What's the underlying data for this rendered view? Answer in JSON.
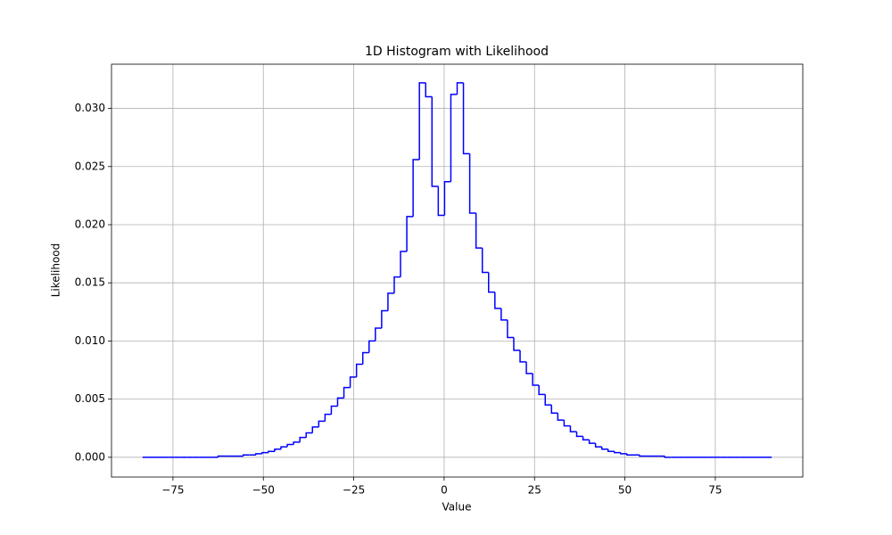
{
  "chart_data": {
    "type": "histogram",
    "title": "1D Histogram with Likelihood",
    "x_label": "Value",
    "y_label": "Likelihood",
    "color": "#0000ff",
    "grid": true,
    "bins": [
      -83.4,
      -81.66,
      -79.92,
      -78.18,
      -76.44,
      -74.7,
      -72.96,
      -71.22,
      -69.48,
      -67.74,
      -66.0,
      -64.26,
      -62.52,
      -60.78,
      -59.04,
      -57.3,
      -55.56,
      -53.82,
      -52.08,
      -50.34,
      -48.6,
      -46.86,
      -45.12,
      -43.38,
      -41.64,
      -39.9,
      -38.16,
      -36.42,
      -34.68,
      -32.94,
      -31.2,
      -29.46,
      -27.72,
      -25.98,
      -24.24,
      -22.5,
      -20.76,
      -19.02,
      -17.28,
      -15.54,
      -13.8,
      -12.06,
      -10.32,
      -8.58,
      -6.84,
      -5.1,
      -3.36,
      -1.62,
      0.12,
      1.86,
      3.6,
      5.34,
      7.08,
      8.82,
      10.56,
      12.3,
      14.04,
      15.78,
      17.52,
      19.26,
      21.0,
      22.74,
      24.48,
      26.22,
      27.96,
      29.7,
      31.44,
      33.18,
      34.92,
      36.66,
      38.4,
      40.14,
      41.88,
      43.62,
      45.36,
      47.1,
      48.84,
      50.58,
      52.32,
      54.06,
      55.8,
      57.54,
      59.28,
      61.02,
      62.76,
      64.5,
      66.24,
      67.98,
      69.72,
      71.46,
      73.2,
      74.94,
      76.68,
      78.42,
      80.16,
      81.9,
      83.64,
      85.38,
      87.12,
      88.86,
      90.6
    ],
    "values": [
      0,
      0,
      0,
      0,
      0,
      0,
      0,
      0,
      0,
      0,
      0,
      0,
      0.0001,
      0.0001,
      0.0001,
      0.0001,
      0.0002,
      0.0002,
      0.0003,
      0.0004,
      0.0005,
      0.0007,
      0.0009,
      0.0011,
      0.0013,
      0.0017,
      0.0021,
      0.0026,
      0.0031,
      0.0037,
      0.0044,
      0.0051,
      0.006,
      0.0069,
      0.008,
      0.009,
      0.01,
      0.0111,
      0.0126,
      0.0141,
      0.0155,
      0.0177,
      0.0207,
      0.0256,
      0.0322,
      0.031,
      0.0233,
      0.0208,
      0.0237,
      0.0312,
      0.0322,
      0.0261,
      0.021,
      0.018,
      0.0159,
      0.0142,
      0.0128,
      0.0118,
      0.0103,
      0.0092,
      0.0082,
      0.0072,
      0.0062,
      0.0054,
      0.0045,
      0.0038,
      0.0032,
      0.0027,
      0.0022,
      0.0018,
      0.0015,
      0.0012,
      0.0009,
      0.0007,
      0.0005,
      0.0004,
      0.0003,
      0.0002,
      0.0002,
      0.0001,
      0.0001,
      0.0001,
      0.0001,
      0,
      0,
      0,
      0,
      0,
      0,
      0,
      0,
      0,
      0,
      0,
      0,
      0,
      0,
      0,
      0,
      0
    ],
    "xlim": [
      -92.0,
      99.2
    ],
    "ylim": [
      -0.0017,
      0.0338
    ],
    "xticks": [
      {
        "value": -75,
        "label": "−75"
      },
      {
        "value": -50,
        "label": "−50"
      },
      {
        "value": -25,
        "label": "−25"
      },
      0,
      25,
      50,
      75
    ],
    "yticks": [
      {
        "value": 0,
        "label": "0.000"
      },
      {
        "value": 0.005,
        "label": "0.005"
      },
      {
        "value": 0.01,
        "label": "0.010"
      },
      {
        "value": 0.015,
        "label": "0.015"
      },
      {
        "value": 0.02,
        "label": "0.020"
      },
      {
        "value": 0.025,
        "label": "0.025"
      },
      {
        "value": 0.03,
        "label": "0.030"
      }
    ]
  }
}
